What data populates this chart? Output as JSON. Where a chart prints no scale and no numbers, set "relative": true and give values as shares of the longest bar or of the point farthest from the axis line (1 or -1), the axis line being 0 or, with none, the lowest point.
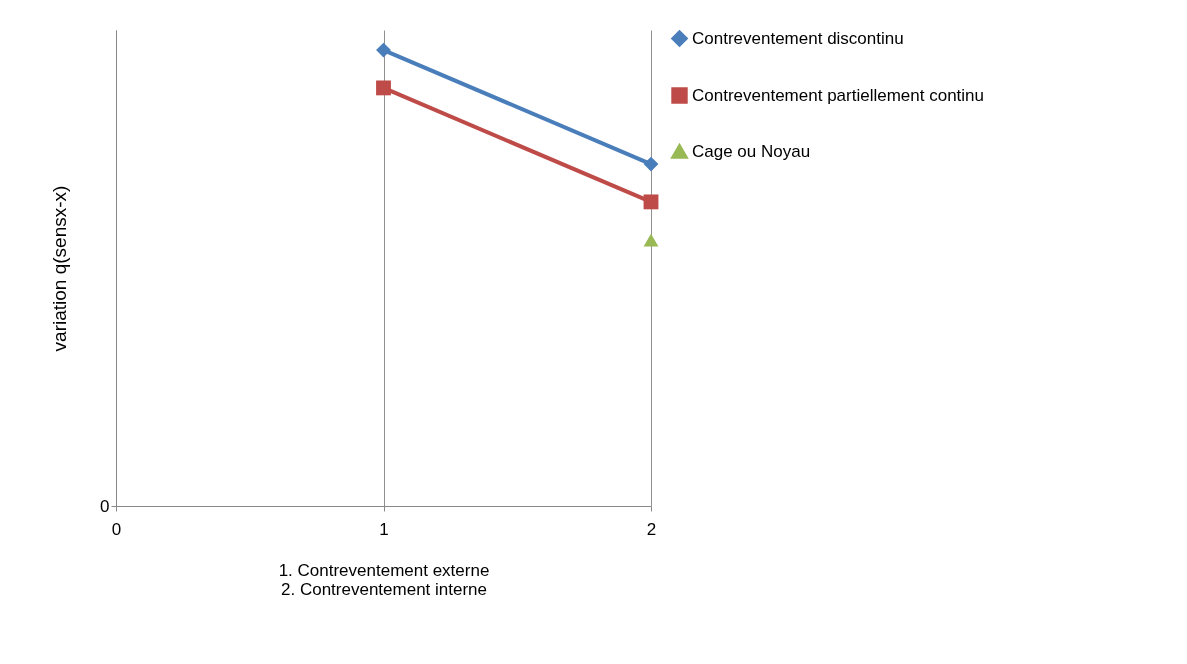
{
  "chart_data": {
    "type": "line",
    "relative": true,
    "ylabel": "variation q(sensx-x)",
    "xlabel": "1. Contreventement externe\n2. Contreventement interne",
    "x": [
      1,
      2
    ],
    "xlim": [
      0,
      2
    ],
    "xticks": [
      0,
      1,
      2
    ],
    "grid": "x",
    "legend": "right",
    "annotations": [
      "0"
    ],
    "series": [
      {
        "name": "Contreventement discontinu",
        "color": "#4a7ebb",
        "marker": "diamond",
        "values": [
          1,
          0.75
        ]
      },
      {
        "name": "Contreventement partiellement continu",
        "color": "#be4b48",
        "marker": "square",
        "values": [
          0.917,
          0.667
        ]
      },
      {
        "name": "Cage ou Noyau",
        "color": "#98b954",
        "marker": "triangle",
        "values": [
          null,
          0.583
        ]
      }
    ]
  }
}
